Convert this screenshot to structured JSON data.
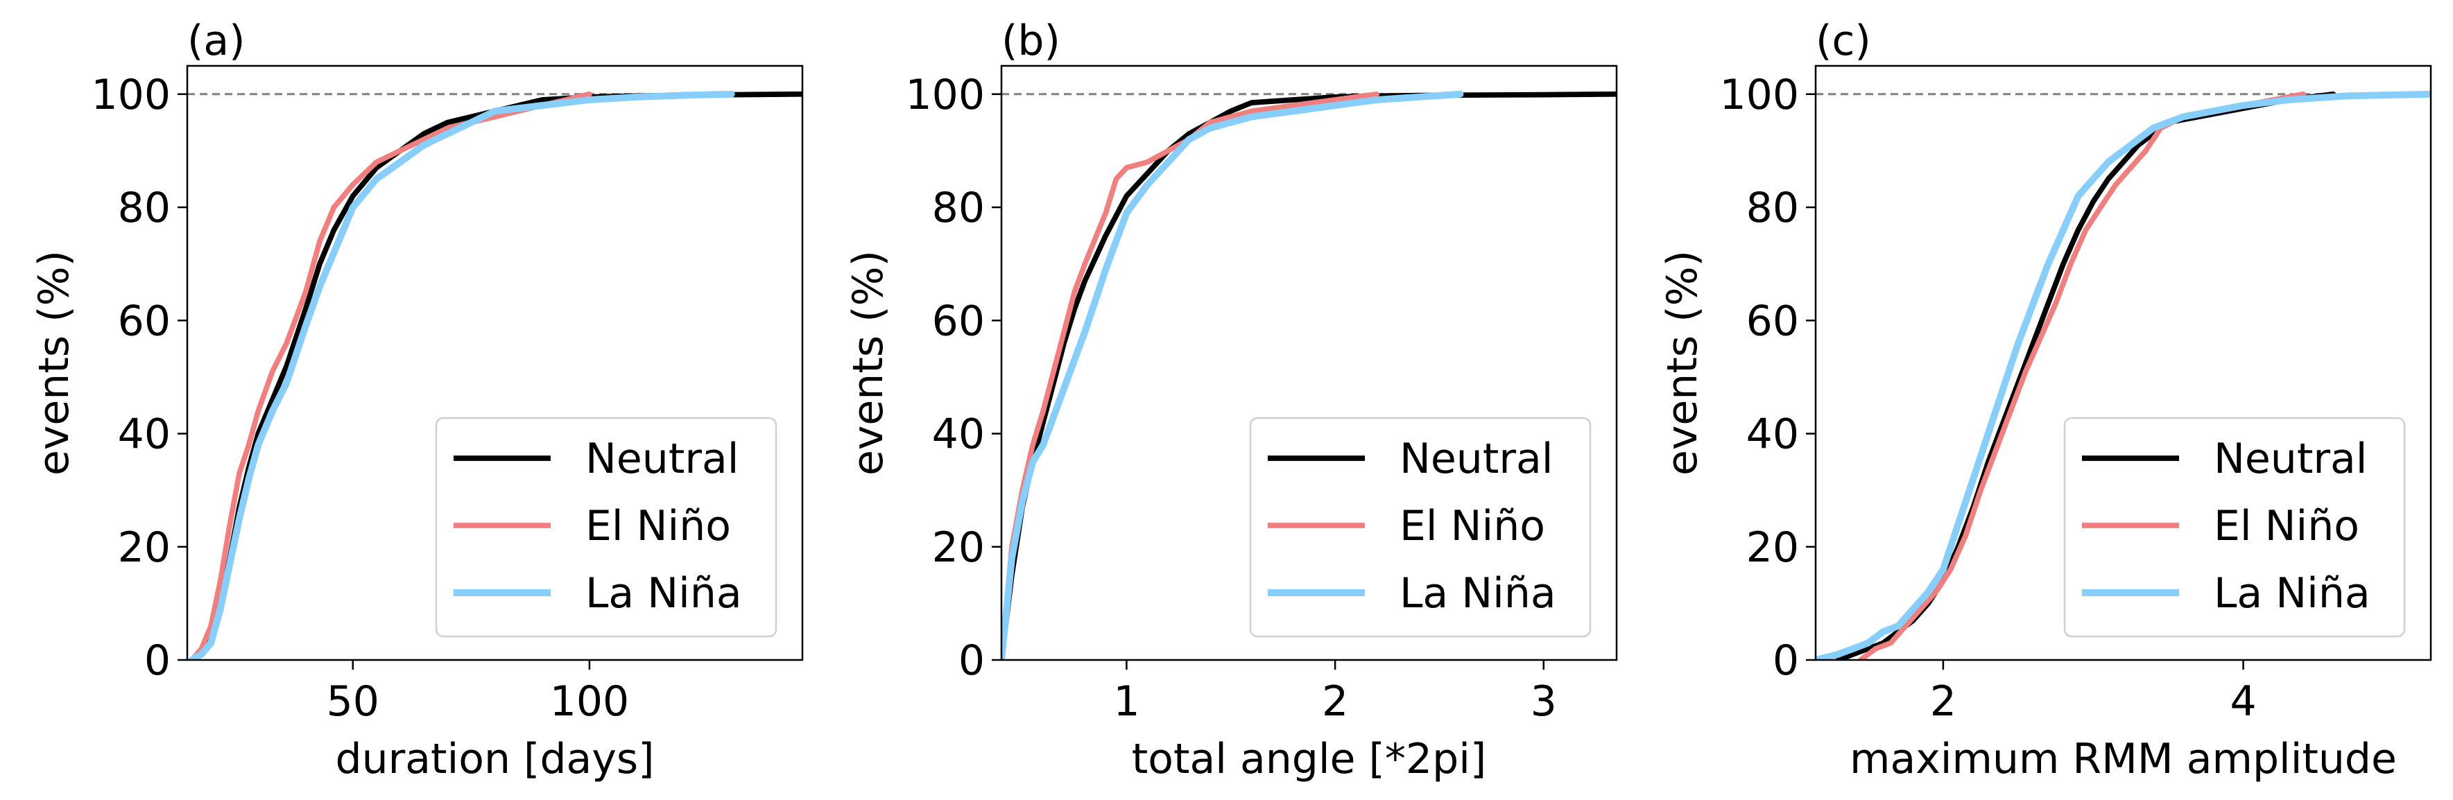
{
  "chart_data": [
    {
      "type": "line",
      "panel_label": "(a)",
      "xlabel": "duration [days]",
      "ylabel": "events (%)",
      "xlim": [
        15,
        145
      ],
      "ylim": [
        0,
        105
      ],
      "xticks": [
        50,
        100
      ],
      "yticks": [
        0,
        20,
        40,
        60,
        80,
        100
      ],
      "reference_line": {
        "y": 100,
        "style": "dashed",
        "color": "#808080"
      },
      "legend_position": "lower-right",
      "series": [
        {
          "name": "Neutral",
          "color": "#000000",
          "width": 3.5,
          "x": [
            16,
            18,
            20,
            22,
            24,
            26,
            28,
            30,
            33,
            36,
            40,
            43,
            46,
            50,
            55,
            60,
            65,
            70,
            75,
            80,
            85,
            90,
            100,
            110,
            120,
            130,
            145
          ],
          "y": [
            0,
            1,
            4,
            10,
            18,
            27,
            34,
            40,
            46,
            52,
            62,
            70,
            76,
            82,
            87,
            90,
            93,
            95,
            96,
            97,
            98,
            99,
            99.5,
            99.7,
            99.8,
            99.9,
            100
          ]
        },
        {
          "name": "El Niño",
          "color": "#f08080",
          "width": 3.5,
          "x": [
            16,
            18,
            20,
            22,
            24,
            26,
            28,
            30,
            33,
            36,
            40,
            43,
            46,
            50,
            55,
            60,
            65,
            70,
            75,
            80,
            85,
            90,
            95,
            100
          ],
          "y": [
            0,
            2,
            6,
            14,
            24,
            33,
            38,
            44,
            51,
            56,
            65,
            74,
            80,
            84,
            88,
            90,
            92,
            94,
            95,
            96,
            97,
            98,
            99,
            100
          ]
        },
        {
          "name": "La Niña",
          "color": "#87cefa",
          "width": 4.5,
          "x": [
            16,
            18,
            20,
            22,
            24,
            26,
            28,
            30,
            33,
            36,
            40,
            43,
            46,
            50,
            55,
            60,
            65,
            70,
            75,
            80,
            90,
            100,
            110,
            120,
            130
          ],
          "y": [
            0,
            1,
            3,
            9,
            17,
            25,
            32,
            38,
            44,
            49,
            59,
            66,
            72,
            80,
            85,
            88,
            91,
            93,
            95,
            97,
            98,
            99,
            99.5,
            99.8,
            100
          ]
        }
      ]
    },
    {
      "type": "line",
      "panel_label": "(b)",
      "xlabel": "total angle [*2pi]",
      "ylabel": "events (%)",
      "xlim": [
        0.4,
        3.35
      ],
      "ylim": [
        0,
        105
      ],
      "xticks": [
        1,
        2,
        3
      ],
      "yticks": [
        0,
        20,
        40,
        60,
        80,
        100
      ],
      "reference_line": {
        "y": 100,
        "style": "dashed",
        "color": "#808080"
      },
      "legend_position": "lower-right",
      "series": [
        {
          "name": "Neutral",
          "color": "#000000",
          "width": 3.5,
          "x": [
            0.4,
            0.45,
            0.5,
            0.55,
            0.6,
            0.65,
            0.7,
            0.75,
            0.8,
            0.9,
            1.0,
            1.1,
            1.2,
            1.3,
            1.4,
            1.5,
            1.6,
            1.8,
            2.0,
            2.2,
            2.5,
            3.0,
            3.35
          ],
          "y": [
            0,
            15,
            27,
            35,
            42,
            49,
            56,
            62,
            67,
            75,
            82,
            86,
            90,
            93,
            95,
            97,
            98.5,
            99,
            99.5,
            99.7,
            99.8,
            99.9,
            100
          ]
        },
        {
          "name": "El Niño",
          "color": "#f08080",
          "width": 3.5,
          "x": [
            0.4,
            0.45,
            0.5,
            0.55,
            0.6,
            0.65,
            0.7,
            0.75,
            0.8,
            0.9,
            0.95,
            1.0,
            1.1,
            1.2,
            1.3,
            1.4,
            1.5,
            1.6,
            1.8,
            2.0,
            2.2
          ],
          "y": [
            0,
            20,
            30,
            38,
            44,
            51,
            58,
            65,
            70,
            79,
            85,
            87,
            88,
            90,
            92,
            95,
            96,
            97,
            98,
            99,
            100
          ]
        },
        {
          "name": "La Niña",
          "color": "#87cefa",
          "width": 4.5,
          "x": [
            0.4,
            0.45,
            0.5,
            0.55,
            0.6,
            0.65,
            0.7,
            0.75,
            0.8,
            0.9,
            1.0,
            1.1,
            1.2,
            1.3,
            1.4,
            1.5,
            1.6,
            1.8,
            2.0,
            2.2,
            2.4,
            2.6
          ],
          "y": [
            0,
            18,
            28,
            35,
            38,
            43,
            48,
            53,
            58,
            69,
            79,
            84,
            88,
            92,
            94,
            95,
            96,
            97,
            98,
            99,
            99.5,
            100
          ]
        }
      ]
    },
    {
      "type": "line",
      "panel_label": "(c)",
      "xlabel": "maximum RMM amplitude",
      "ylabel": "events (%)",
      "xlim": [
        1.15,
        5.25
      ],
      "ylim": [
        0,
        105
      ],
      "xticks": [
        2,
        4
      ],
      "yticks": [
        0,
        20,
        40,
        60,
        80,
        100
      ],
      "reference_line": {
        "y": 100,
        "style": "dashed",
        "color": "#808080"
      },
      "legend_position": "lower-right",
      "series": [
        {
          "name": "Neutral",
          "color": "#000000",
          "width": 3.5,
          "x": [
            1.3,
            1.4,
            1.5,
            1.6,
            1.7,
            1.8,
            1.9,
            2.0,
            2.1,
            2.2,
            2.3,
            2.4,
            2.5,
            2.6,
            2.7,
            2.8,
            2.9,
            3.0,
            3.1,
            3.2,
            3.3,
            3.4,
            3.5,
            3.7,
            3.9,
            4.1,
            4.3,
            4.6
          ],
          "y": [
            0,
            1,
            2,
            3,
            5,
            7,
            10,
            14,
            20,
            27,
            35,
            42,
            49,
            56,
            63,
            70,
            76,
            81,
            85,
            88,
            91,
            93,
            95,
            96,
            97,
            98,
            99,
            100
          ]
        },
        {
          "name": "El Niño",
          "color": "#f08080",
          "width": 3.5,
          "x": [
            1.45,
            1.55,
            1.65,
            1.75,
            1.85,
            1.95,
            2.05,
            2.15,
            2.25,
            2.35,
            2.45,
            2.55,
            2.65,
            2.75,
            2.85,
            2.95,
            3.05,
            3.15,
            3.25,
            3.35,
            3.45,
            3.6,
            3.8,
            4.0,
            4.2,
            4.4
          ],
          "y": [
            0,
            2,
            3,
            6,
            9,
            12,
            16,
            22,
            30,
            37,
            44,
            51,
            57,
            63,
            70,
            76,
            80,
            84,
            87,
            90,
            94,
            96,
            97,
            98,
            99,
            100
          ]
        },
        {
          "name": "La Niña",
          "color": "#87cefa",
          "width": 4.5,
          "x": [
            1.15,
            1.3,
            1.4,
            1.5,
            1.6,
            1.7,
            1.8,
            1.9,
            2.0,
            2.1,
            2.2,
            2.3,
            2.4,
            2.5,
            2.6,
            2.7,
            2.8,
            2.9,
            3.0,
            3.1,
            3.2,
            3.3,
            3.4,
            3.6,
            3.8,
            4.0,
            4.3,
            4.7,
            5.25
          ],
          "y": [
            0,
            1,
            2,
            3,
            5,
            6,
            9,
            12,
            16,
            24,
            32,
            40,
            48,
            56,
            63,
            70,
            76,
            82,
            85,
            88,
            90,
            92,
            94,
            96,
            97,
            98,
            99,
            99.7,
            100
          ]
        }
      ]
    }
  ]
}
